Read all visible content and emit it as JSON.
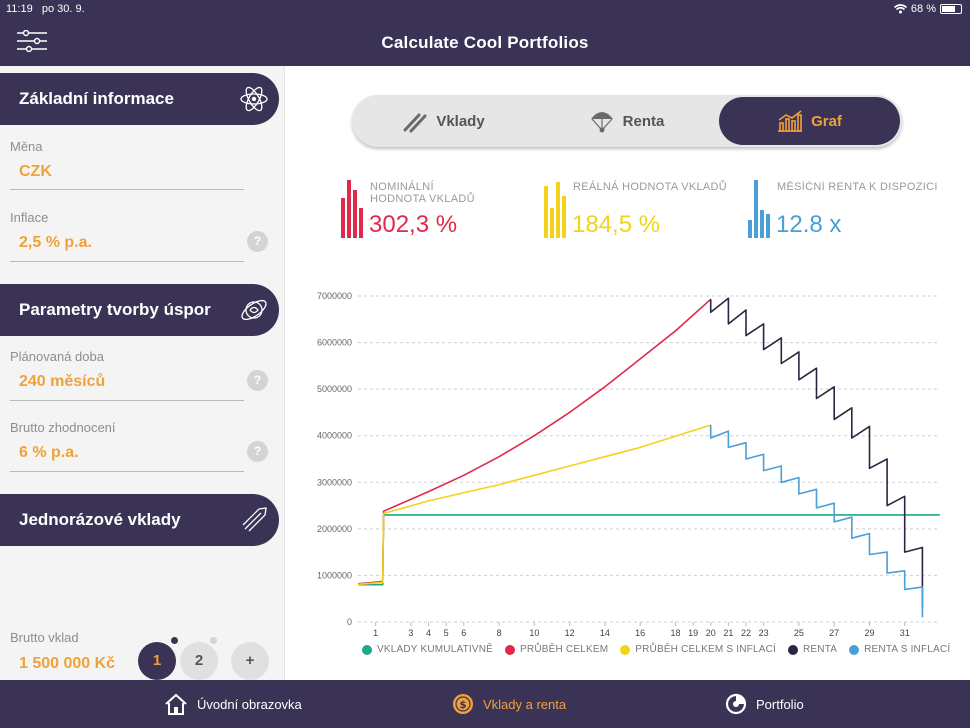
{
  "status": {
    "time": "11:19",
    "date": "po 30. 9.",
    "battery": "68 %"
  },
  "header": {
    "title": "Calculate Cool Portfolios"
  },
  "sections": {
    "basic": {
      "title": "Základní informace"
    },
    "savings": {
      "title": "Parametry tvorby úspor"
    },
    "deposits": {
      "title": "Jednorázové vklady"
    }
  },
  "fields": {
    "currency": {
      "label": "Měna",
      "value": "CZK"
    },
    "inflation": {
      "label": "Inflace",
      "value": "2,5 % p.a."
    },
    "duration": {
      "label": "Plánovaná doba",
      "value": "240 měsíců"
    },
    "gross_yield": {
      "label": "Brutto zhodnocení",
      "value": "6 % p.a."
    },
    "gross_deposit": {
      "label": "Brutto vklad",
      "value": "1 500 000 Kč"
    }
  },
  "help_glyph": "?",
  "pager": {
    "page1": "1",
    "page2": "2",
    "add": "+"
  },
  "tabs": {
    "deposits": "Vklady",
    "annuity": "Renta",
    "chart": "Graf"
  },
  "stats": {
    "nominal": {
      "label_line1": "NOMINÁLNÍ",
      "label_line2": "HODNOTA VKLADŮ",
      "value": "302,3 %",
      "color": "#e0294b"
    },
    "real": {
      "label_line1": "REÁLNÁ HODNOTA VKLADŮ",
      "value": "184,5 %",
      "color": "#f2d21b"
    },
    "annuity": {
      "label_line1": "MĚSÍČNÍ RENTA K DISPOZICI",
      "value": "12.8 x",
      "color": "#4a9fd8"
    }
  },
  "chart_data": {
    "type": "line",
    "y_ticks": [
      0,
      1000000,
      2000000,
      3000000,
      4000000,
      5000000,
      6000000,
      7000000
    ],
    "ylim": [
      0,
      7000000
    ],
    "x_tick_labels": [
      "1",
      "3",
      "4",
      "5",
      "6",
      "8",
      "10",
      "12",
      "14",
      "16",
      "18",
      "19",
      "20",
      "21",
      "22",
      "23",
      "25",
      "27",
      "29",
      "31"
    ],
    "grid": true,
    "legend_placement": "bottom",
    "series": [
      {
        "name": "VKLADY KUMULATIVNĚ",
        "color": "#1fa88a",
        "x": [
          0,
          1.4,
          1.45,
          33
        ],
        "y": [
          800000,
          800000,
          2300000,
          2300000
        ]
      },
      {
        "name": "PRŮBĚH CELKEM",
        "color": "#e0294b",
        "x": [
          0,
          1.4,
          1.45,
          4,
          6,
          8,
          10,
          12,
          14,
          16,
          18,
          20
        ],
        "y": [
          820000,
          870000,
          2380000,
          2800000,
          3150000,
          3550000,
          4000000,
          4500000,
          5050000,
          5650000,
          6250000,
          6930000
        ]
      },
      {
        "name": "PRŮBĚH CELKEM S INFLACÍ",
        "color": "#f2d21b",
        "x": [
          0,
          1.4,
          1.45,
          4,
          8,
          12,
          16,
          20
        ],
        "y": [
          810000,
          850000,
          2330000,
          2600000,
          2950000,
          3350000,
          3750000,
          4230000
        ]
      },
      {
        "name": "RENTA",
        "color": "#2d2540",
        "x": [
          20,
          20,
          21,
          21,
          22,
          22,
          23,
          23,
          24,
          24,
          25,
          25,
          26,
          26,
          27,
          27,
          28,
          28,
          29,
          29,
          30,
          30,
          31,
          31,
          32,
          32
        ],
        "y": [
          6930000,
          6650000,
          6950000,
          6400000,
          6700000,
          6150000,
          6400000,
          5850000,
          6100000,
          5550000,
          5800000,
          5200000,
          5450000,
          4800000,
          5050000,
          4350000,
          4600000,
          3950000,
          4200000,
          3300000,
          3500000,
          2500000,
          2700000,
          1500000,
          1600000,
          300000
        ]
      },
      {
        "name": "RENTA S INFLACÍ",
        "color": "#4a9fd8",
        "x": [
          20,
          20,
          21,
          21,
          22,
          22,
          23,
          23,
          24,
          24,
          25,
          25,
          26,
          26,
          27,
          27,
          28,
          28,
          29,
          29,
          30,
          30,
          31,
          31,
          32,
          32
        ],
        "y": [
          4230000,
          3950000,
          4100000,
          3750000,
          3850000,
          3500000,
          3600000,
          3250000,
          3350000,
          3000000,
          3100000,
          2750000,
          2850000,
          2450000,
          2550000,
          2150000,
          2250000,
          1800000,
          1900000,
          1450000,
          1500000,
          1050000,
          1100000,
          700000,
          750000,
          100000
        ]
      }
    ]
  },
  "bottom_tabs": {
    "home": "Úvodní obrazovka",
    "deposits_annuity": "Vklady a renta",
    "portfolio": "Portfolio"
  },
  "colors": {
    "primary": "#3b3356",
    "accent": "#f0a23a"
  },
  "icons": {
    "menu": "sliders-icon",
    "basic": "atom-icon",
    "savings": "orbit-icon",
    "deposits": "rocket-icon",
    "home": "house-icon",
    "coin": "coin-icon",
    "portfolio": "pie-icon"
  }
}
